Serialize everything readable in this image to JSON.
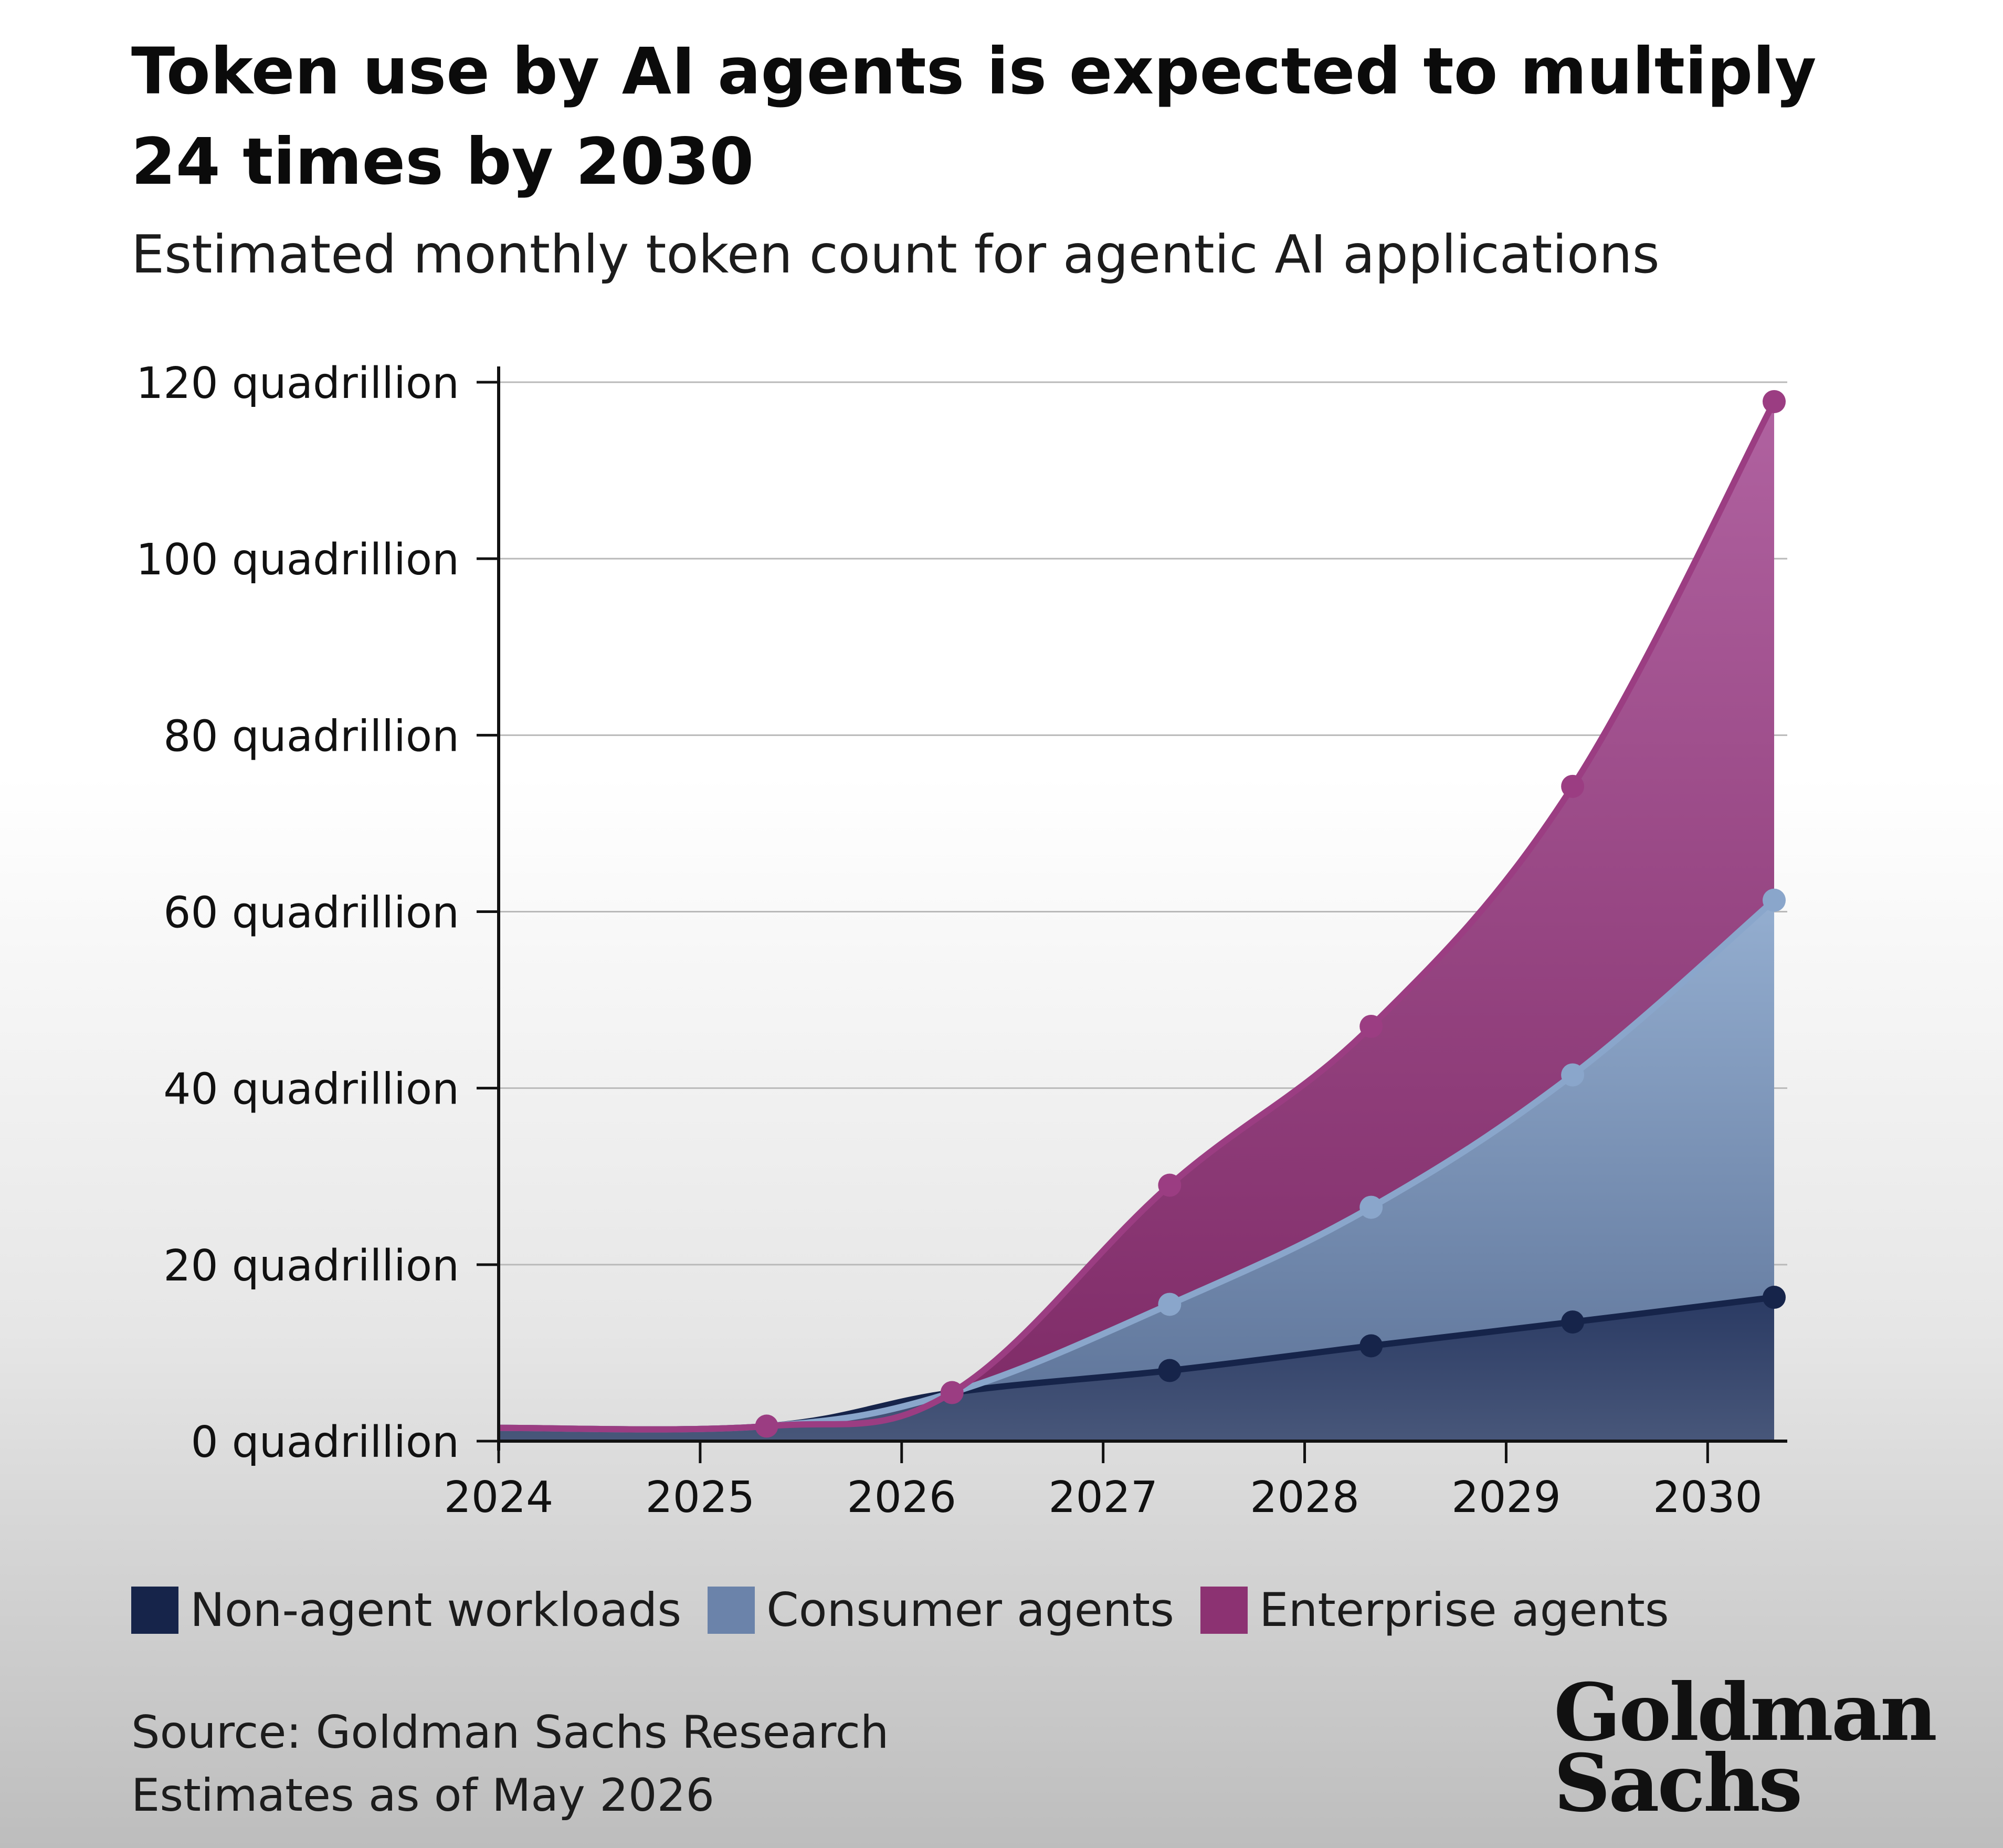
{
  "header": {
    "title": "Token use by AI agents is expected to multiply 24 times by 2030",
    "subtitle": "Estimated monthly token count for agentic AI applications"
  },
  "footer": {
    "source": "Source: Goldman Sachs Research",
    "estimates": "Estimates as of May 2026"
  },
  "logo": {
    "text": "Goldman Sachs"
  },
  "colors": {
    "non_agent": "#16244a",
    "consumer": "#6b83aa",
    "enterprise": "#8c3272",
    "enterprise_line": "#9b3d82",
    "consumer_line": "#8aa6cb"
  },
  "chart_data": {
    "type": "area",
    "stacked": true,
    "title": "Token use by AI agents is expected to multiply 24 times by 2030",
    "subtitle": "Estimated monthly token count for agentic AI applications",
    "x_ticks": [
      2024,
      2025,
      2026,
      2027,
      2028,
      2029,
      2030
    ],
    "xlim": [
      2024,
      2030.33
    ],
    "y_ticks": [
      "0 quadrillion",
      "20 quadrillion",
      "40 quadrillion",
      "60 quadrillion",
      "80 quadrillion",
      "100 quadrillion",
      "120 quadrillion"
    ],
    "ylim": [
      0,
      120
    ],
    "grid": true,
    "legend_position": "bottom-left",
    "series": [
      {
        "name": "Non-agent workloads",
        "x": [
          2024,
          2025.33,
          2026.25,
          2027.33,
          2028.33,
          2029.33,
          2030.33
        ],
        "cumulative": [
          1.5,
          1.7,
          5.5,
          8,
          10.8,
          13.5,
          16.3
        ]
      },
      {
        "name": "Consumer agents",
        "x": [
          2024,
          2025.33,
          2026.25,
          2027.33,
          2028.33,
          2029.33,
          2030.33
        ],
        "cumulative": [
          1.5,
          1.7,
          5.5,
          15.5,
          26.5,
          41.5,
          61.3
        ]
      },
      {
        "name": "Enterprise agents",
        "x": [
          2024,
          2025.33,
          2026.25,
          2027.33,
          2028.33,
          2029.33,
          2030.33
        ],
        "cumulative": [
          1.5,
          1.7,
          5.5,
          29,
          47,
          74.2,
          117.8
        ]
      }
    ]
  }
}
